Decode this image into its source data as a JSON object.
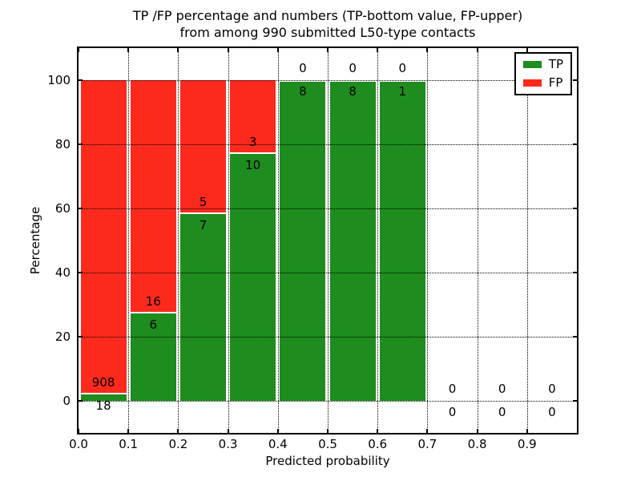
{
  "figure": {
    "title_line1": "TP /FP percentage and numbers (TP-bottom value, FP-upper)",
    "title_line2": "from among 990 submitted L50-type contacts"
  },
  "chart_data": {
    "type": "bar",
    "variant": "stacked-percentage",
    "title": "TP /FP percentage and numbers (TP-bottom value, FP-upper) from among 990 submitted L50-type contacts",
    "total_submitted": 990,
    "xlabel": "Predicted probability",
    "ylabel": "Percentage",
    "xlim": [
      0.0,
      1.0
    ],
    "ylim": [
      -10,
      110
    ],
    "grid": true,
    "x_ticks": [
      {
        "value": 0.0,
        "label": "0.0"
      },
      {
        "value": 0.1,
        "label": "0.1"
      },
      {
        "value": 0.2,
        "label": "0.2"
      },
      {
        "value": 0.3,
        "label": "0.3"
      },
      {
        "value": 0.4,
        "label": "0.4"
      },
      {
        "value": 0.5,
        "label": "0.5"
      },
      {
        "value": 0.6,
        "label": "0.6"
      },
      {
        "value": 0.7,
        "label": "0.7"
      },
      {
        "value": 0.8,
        "label": "0.8"
      },
      {
        "value": 0.9,
        "label": "0.9"
      }
    ],
    "y_ticks": [
      {
        "value": 0,
        "label": "0"
      },
      {
        "value": 20,
        "label": "20"
      },
      {
        "value": 40,
        "label": "40"
      },
      {
        "value": 60,
        "label": "60"
      },
      {
        "value": 80,
        "label": "80"
      },
      {
        "value": 100,
        "label": "100"
      }
    ],
    "legend": {
      "position": "upper right",
      "entries": [
        {
          "label": "TP",
          "color": "#1e8c1e"
        },
        {
          "label": "FP",
          "color": "#fb2a1d"
        }
      ]
    },
    "categories": [
      "0.0-0.1",
      "0.1-0.2",
      "0.2-0.3",
      "0.3-0.4",
      "0.4-0.5",
      "0.5-0.6",
      "0.6-0.7",
      "0.7-0.8",
      "0.8-0.9",
      "0.9-1.0"
    ],
    "series": [
      {
        "name": "TP",
        "color": "#1e8c1e",
        "counts": [
          18,
          6,
          7,
          10,
          8,
          8,
          1,
          0,
          0,
          0
        ]
      },
      {
        "name": "FP",
        "color": "#fb2a1d",
        "counts": [
          908,
          16,
          5,
          3,
          0,
          0,
          0,
          0,
          0,
          0
        ]
      }
    ]
  }
}
